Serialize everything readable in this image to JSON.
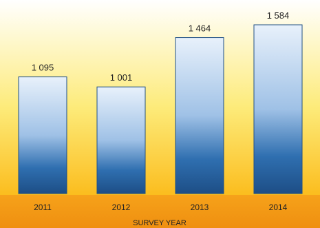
{
  "chart_data": {
    "type": "bar",
    "categories": [
      "2011",
      "2012",
      "2013",
      "2014"
    ],
    "values": [
      1095,
      1001,
      1464,
      1584
    ],
    "value_labels": [
      "1 095",
      "1 001",
      "1 464",
      "1 584"
    ],
    "xlabel": "SURVEY YEAR",
    "ylabel": "",
    "ylim": [
      0,
      1584
    ],
    "grid": false,
    "legend": "none",
    "colors": {
      "bg_top": "#ffffff",
      "bg_mid": "#fdeb7a",
      "bg_bottom": "#fbbd1e",
      "axis_band_top": "#f6a21a",
      "axis_band_bottom": "#ef8f10",
      "bar_top": "#e8f1fb",
      "bar_mid": "#9fc1e6",
      "bar_deep": "#2f6fb0",
      "bar_bottom": "#1d4e86",
      "bar_stroke": "#1f4f85",
      "label_text": "#222222"
    }
  }
}
